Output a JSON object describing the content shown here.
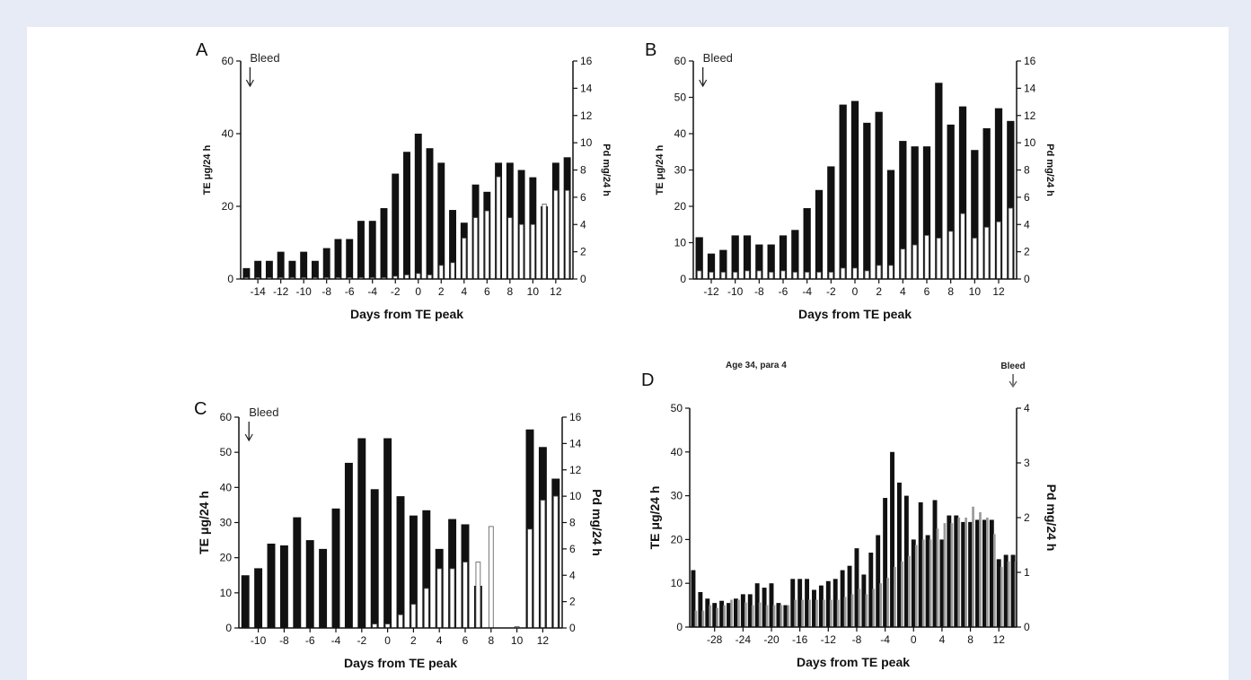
{
  "colors": {
    "page_bg": "#e6ebf5",
    "panel_bg": "#ffffff",
    "te_bar": "#111111",
    "pd_bar_light": "#ffffff",
    "pd_bar_grey": "#9a9a9a"
  },
  "chart_data": [
    {
      "panel": "A",
      "type": "bar",
      "annotation": "Bleed",
      "annotation_day": -15,
      "xlabel": "Days from TE peak",
      "ylabel_left": "TE μg/24 h",
      "ylabel_right": "Pd mg/24 h",
      "xlim": [
        -15,
        13
      ],
      "ylim_left": [
        0,
        60
      ],
      "ylim_right": [
        0,
        16
      ],
      "yticks_left": [
        0,
        20,
        40,
        60
      ],
      "yticks_right": [
        0,
        2,
        4,
        6,
        8,
        10,
        12,
        14,
        16
      ],
      "xticks": [
        -14,
        -12,
        -10,
        -8,
        -6,
        -4,
        -2,
        0,
        2,
        4,
        6,
        8,
        10,
        12
      ],
      "days": [
        -15,
        -14,
        -13,
        -12,
        -11,
        -10,
        -9,
        -8,
        -7,
        -6,
        -5,
        -4,
        -3,
        -2,
        -1,
        0,
        1,
        2,
        3,
        4,
        5,
        6,
        7,
        8,
        9,
        10,
        11,
        12,
        13
      ],
      "series": [
        {
          "name": "TE",
          "axis": "left",
          "values": [
            3,
            5,
            5,
            7.5,
            5,
            7.5,
            5,
            8.5,
            11,
            11,
            16,
            16,
            19.5,
            29,
            35,
            40,
            36,
            32,
            19,
            15.5,
            26,
            24,
            32,
            32,
            30,
            28,
            20,
            32,
            33.5
          ]
        },
        {
          "name": "Pd",
          "axis": "right",
          "values": [
            0.1,
            0.1,
            0.1,
            0.1,
            0.1,
            0.1,
            0.1,
            0.1,
            0.1,
            0.1,
            0.1,
            0.1,
            0.1,
            0.2,
            0.3,
            0.4,
            0.3,
            1,
            1.2,
            3,
            4.5,
            5,
            7.5,
            4.5,
            4,
            4,
            5.5,
            6.5,
            6.5
          ]
        }
      ]
    },
    {
      "panel": "B",
      "type": "bar",
      "annotation": "Bleed",
      "annotation_day": -13,
      "xlabel": "Days from TE peak",
      "ylabel_left": "TE μg/24 h",
      "ylabel_right": "Pd mg/24 h",
      "xlim": [
        -13,
        13
      ],
      "ylim_left": [
        0,
        60
      ],
      "ylim_right": [
        0,
        16
      ],
      "yticks_left": [
        0,
        10,
        20,
        30,
        40,
        50,
        60
      ],
      "yticks_right": [
        0,
        2,
        4,
        6,
        8,
        10,
        12,
        14,
        16
      ],
      "xticks": [
        -12,
        -10,
        -8,
        -6,
        -4,
        -2,
        0,
        2,
        4,
        6,
        8,
        10,
        12
      ],
      "days": [
        -13,
        -12,
        -11,
        -10,
        -9,
        -8,
        -7,
        -6,
        -5,
        -4,
        -3,
        -2,
        -1,
        0,
        1,
        2,
        3,
        4,
        5,
        6,
        7,
        8,
        9,
        10,
        11,
        12,
        13
      ],
      "series": [
        {
          "name": "TE",
          "axis": "left",
          "values": [
            11.5,
            7,
            8,
            12,
            12,
            9.5,
            9.5,
            12,
            13.5,
            19.5,
            24.5,
            31,
            48,
            49,
            43,
            46,
            30,
            38,
            36.5,
            36.5,
            54,
            42.5,
            47.5,
            35.5,
            41.5,
            47,
            43.5
          ]
        },
        {
          "name": "Pd",
          "axis": "right",
          "values": [
            0.6,
            0.5,
            0.5,
            0.5,
            0.6,
            0.6,
            0.5,
            0.6,
            0.5,
            0.5,
            0.5,
            0.5,
            0.8,
            0.8,
            0.6,
            1,
            1,
            2.2,
            2.5,
            3.2,
            3,
            3.5,
            4.8,
            3,
            3.8,
            4.2,
            5.2
          ]
        }
      ]
    },
    {
      "panel": "C",
      "type": "bar",
      "annotation": "Bleed",
      "annotation_day": -11,
      "xlabel": "Days from TE peak",
      "ylabel_left": "TE μg/24 h",
      "ylabel_right": "Pd mg/24 h",
      "xlim": [
        -11,
        13
      ],
      "ylim_left": [
        0,
        60
      ],
      "ylim_right": [
        0,
        16
      ],
      "yticks_left": [
        0,
        10,
        20,
        30,
        40,
        50,
        60
      ],
      "yticks_right": [
        0,
        2,
        4,
        6,
        8,
        10,
        12,
        14,
        16
      ],
      "xticks": [
        -10,
        -8,
        -6,
        -4,
        -2,
        0,
        2,
        4,
        6,
        8,
        10,
        12
      ],
      "days": [
        -11,
        -10,
        -9,
        -8,
        -7,
        -6,
        -5,
        -4,
        -3,
        -2,
        -1,
        0,
        1,
        2,
        3,
        4,
        5,
        6,
        7,
        8,
        10,
        11,
        12,
        13
      ],
      "series": [
        {
          "name": "TE",
          "axis": "left",
          "values": [
            15,
            17,
            24,
            23.5,
            31.5,
            25,
            22.5,
            34,
            47,
            54,
            39.5,
            54,
            37.5,
            32,
            33.5,
            22.5,
            31,
            29.5,
            12,
            0,
            0,
            56.5,
            51.5,
            42.5
          ]
        },
        {
          "name": "Pd",
          "axis": "right",
          "values": [
            0,
            0,
            0,
            0,
            0,
            0,
            0,
            0,
            0,
            0,
            0.3,
            0.3,
            1,
            1.8,
            3,
            4.5,
            4.5,
            5,
            5,
            7.7,
            0.1,
            7.5,
            9.7,
            10
          ]
        }
      ]
    },
    {
      "panel": "D",
      "type": "bar",
      "title": "Age 34, para 4",
      "annotation": "Bleed",
      "annotation_day": 14,
      "xlabel": "Days from TE peak",
      "ylabel_left": "TE μg/24 h",
      "ylabel_right": "Pd mg/24 h",
      "xlim": [
        -31,
        14
      ],
      "ylim_left": [
        0,
        50
      ],
      "ylim_right": [
        0,
        4
      ],
      "yticks_left": [
        0,
        10,
        20,
        30,
        40,
        50
      ],
      "yticks_right": [
        0,
        1,
        2,
        3,
        4
      ],
      "xticks": [
        -28,
        -24,
        -20,
        -16,
        -12,
        -8,
        -4,
        0,
        4,
        8,
        12
      ],
      "days": [
        -31,
        -30,
        -29,
        -28,
        -27,
        -26,
        -25,
        -24,
        -23,
        -22,
        -21,
        -20,
        -19,
        -18,
        -17,
        -16,
        -15,
        -14,
        -13,
        -12,
        -11,
        -10,
        -9,
        -8,
        -7,
        -6,
        -5,
        -4,
        -3,
        -2,
        -1,
        0,
        1,
        2,
        3,
        4,
        5,
        6,
        7,
        8,
        9,
        10,
        11,
        12,
        13,
        14
      ],
      "series": [
        {
          "name": "TE",
          "axis": "left",
          "values": [
            13,
            8,
            6.5,
            5.5,
            6,
            5.5,
            6.5,
            7.5,
            7.5,
            10,
            9,
            10,
            5.5,
            5,
            11,
            11,
            11,
            8.5,
            9.5,
            10.5,
            11,
            13,
            14,
            18,
            12,
            17,
            21,
            29.5,
            40,
            33,
            30,
            20,
            28.5,
            21,
            29,
            20,
            25.5,
            25.5,
            24,
            24,
            24.5,
            24.5,
            24.5,
            15.5,
            16.5,
            16.5
          ]
        },
        {
          "name": "Pd",
          "axis": "right",
          "values": [
            0.3,
            0.3,
            0.4,
            0.35,
            0.4,
            0.5,
            0.5,
            0.45,
            0.4,
            0.45,
            0.4,
            0.4,
            0.4,
            0.4,
            0.5,
            0.5,
            0.5,
            0.5,
            0.5,
            0.5,
            0.5,
            0.55,
            0.6,
            0.7,
            0.6,
            0.7,
            0.8,
            0.9,
            1.1,
            1.2,
            1.3,
            1.5,
            1.6,
            1.6,
            1.8,
            1.9,
            1.9,
            2,
            2,
            2.2,
            2.1,
            2,
            1.7,
            1.1,
            1.2,
            1.2
          ]
        }
      ]
    }
  ]
}
